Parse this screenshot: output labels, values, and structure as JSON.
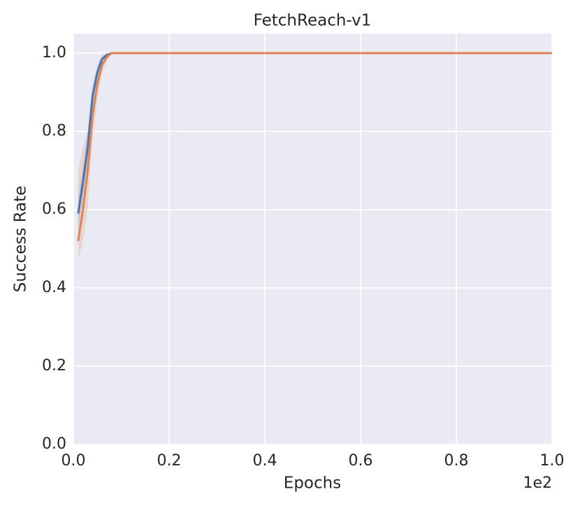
{
  "chart_data": {
    "type": "line",
    "title": "FetchReach-v1",
    "x_label": "Epochs",
    "y_label": "Success Rate",
    "x_offset_label": "1e2",
    "x": [
      1,
      2,
      3,
      4,
      5,
      6,
      7,
      8,
      10,
      20,
      30,
      40,
      50,
      60,
      70,
      80,
      90,
      100
    ],
    "series": [
      {
        "color": "#4c72b0",
        "values": [
          0.59,
          0.67,
          0.76,
          0.89,
          0.95,
          0.985,
          0.995,
          1.0,
          1.0,
          1.0,
          1.0,
          1.0,
          1.0,
          1.0,
          1.0,
          1.0,
          1.0,
          1.0
        ],
        "lower": [
          0.55,
          0.63,
          0.72,
          0.86,
          0.93,
          0.975,
          0.99,
          1.0,
          1.0,
          1.0,
          1.0,
          1.0,
          1.0,
          1.0,
          1.0,
          1.0,
          1.0,
          1.0
        ],
        "upper": [
          0.63,
          0.71,
          0.8,
          0.92,
          0.97,
          0.995,
          1.0,
          1.0,
          1.0,
          1.0,
          1.0,
          1.0,
          1.0,
          1.0,
          1.0,
          1.0,
          1.0,
          1.0
        ]
      },
      {
        "color": "#dd8452",
        "values": [
          0.52,
          0.6,
          0.7,
          0.84,
          0.92,
          0.97,
          0.99,
          1.0,
          1.0,
          1.0,
          1.0,
          1.0,
          1.0,
          1.0,
          1.0,
          1.0,
          1.0,
          1.0
        ],
        "lower": [
          0.47,
          0.52,
          0.6,
          0.78,
          0.88,
          0.95,
          0.98,
          1.0,
          1.0,
          1.0,
          1.0,
          1.0,
          1.0,
          1.0,
          1.0,
          1.0,
          1.0,
          1.0
        ],
        "upper": [
          0.7,
          0.76,
          0.8,
          0.88,
          0.95,
          0.99,
          1.0,
          1.0,
          1.0,
          1.0,
          1.0,
          1.0,
          1.0,
          1.0,
          1.0,
          1.0,
          1.0,
          1.0
        ]
      }
    ],
    "xlim": [
      0,
      100
    ],
    "xticks": [
      {
        "value": 0,
        "label": "0.0"
      },
      {
        "value": 20,
        "label": "0.2"
      },
      {
        "value": 40,
        "label": "0.4"
      },
      {
        "value": 60,
        "label": "0.6"
      },
      {
        "value": 80,
        "label": "0.8"
      },
      {
        "value": 100,
        "label": "1.0"
      }
    ],
    "ylim": [
      0,
      1.05
    ],
    "yticks": [
      {
        "value": 0,
        "label": "0.0"
      },
      {
        "value": 0.2,
        "label": "0.2"
      },
      {
        "value": 0.4,
        "label": "0.4"
      },
      {
        "value": 0.6,
        "label": "0.6"
      },
      {
        "value": 0.8,
        "label": "0.8"
      },
      {
        "value": 1.0,
        "label": "1.0"
      }
    ],
    "grid": true
  }
}
